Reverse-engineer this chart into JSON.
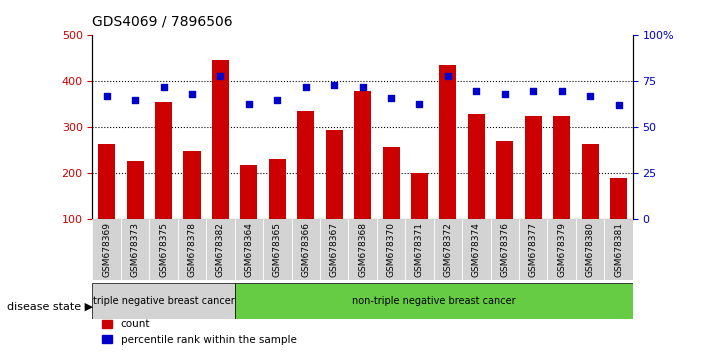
{
  "title": "GDS4069 / 7896506",
  "samples": [
    "GSM678369",
    "GSM678373",
    "GSM678375",
    "GSM678378",
    "GSM678382",
    "GSM678364",
    "GSM678365",
    "GSM678366",
    "GSM678367",
    "GSM678368",
    "GSM678370",
    "GSM678371",
    "GSM678372",
    "GSM678374",
    "GSM678376",
    "GSM678377",
    "GSM678379",
    "GSM678380",
    "GSM678381"
  ],
  "counts": [
    265,
    228,
    355,
    248,
    446,
    218,
    232,
    335,
    295,
    380,
    258,
    200,
    435,
    330,
    270,
    325,
    325,
    263,
    190
  ],
  "percentiles": [
    67,
    65,
    72,
    68,
    78,
    63,
    65,
    72,
    73,
    72,
    66,
    63,
    78,
    70,
    68,
    70,
    70,
    67,
    62
  ],
  "group1_label": "triple negative breast cancer",
  "group2_label": "non-triple negative breast cancer",
  "group1_count": 5,
  "group2_count": 14,
  "bar_color": "#cc0000",
  "dot_color": "#0000cc",
  "ylim_left": [
    100,
    500
  ],
  "ylim_right": [
    0,
    100
  ],
  "yticks_left": [
    100,
    200,
    300,
    400,
    500
  ],
  "yticks_right": [
    0,
    25,
    50,
    75,
    100
  ],
  "legend_count_label": "count",
  "legend_pct_label": "percentile rank within the sample",
  "disease_state_label": "disease state",
  "group1_bg": "#d3d3d3",
  "group2_bg": "#66cc44",
  "tick_bg": "#d3d3d3"
}
